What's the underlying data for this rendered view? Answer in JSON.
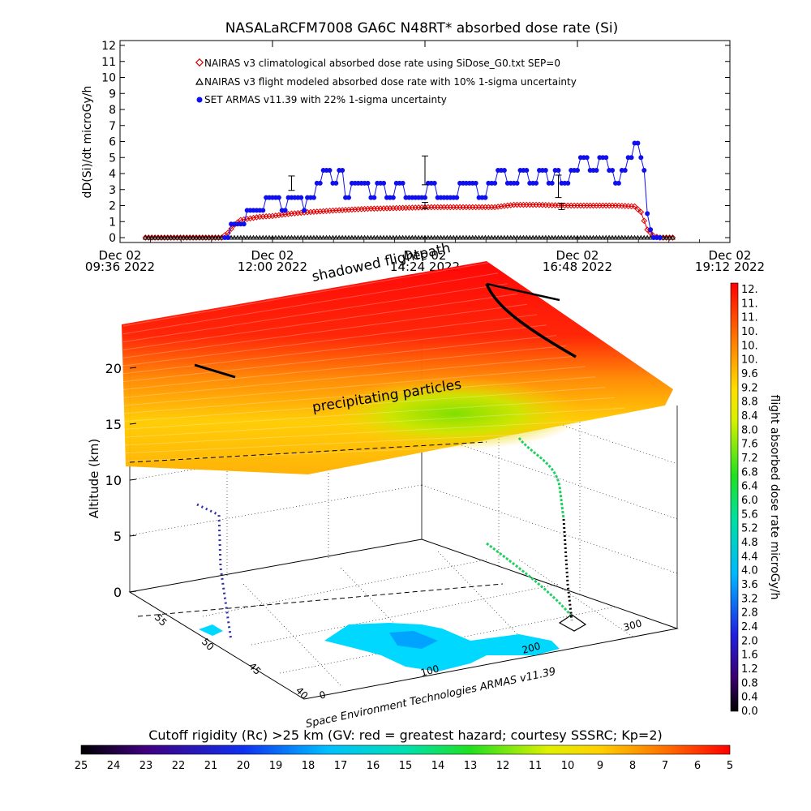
{
  "title": "NASALaRCFM7008   GA6C N48RT* absorbed dose rate (Si)",
  "colors": {
    "nairas_clim": "#e00000",
    "nairas_flight": "#000000",
    "armas": "#1010ee"
  },
  "chart_data": [
    {
      "type": "line",
      "title": "NASALaRCFM7008   GA6C N48RT* absorbed dose rate (Si)",
      "ylabel": "dD(Si)/dt microGy/h",
      "xlabel": "",
      "ylim": [
        0,
        12
      ],
      "yticks": [
        "0",
        "1",
        "2",
        "3",
        "4",
        "5",
        "6",
        "7",
        "8",
        "9",
        "10",
        "11",
        "12"
      ],
      "xticks": [
        {
          "line1": "Dec 02",
          "line2": "09:36 2022",
          "t": 9.6
        },
        {
          "line1": "Dec 02",
          "line2": "12:00 2022",
          "t": 12.0
        },
        {
          "line1": "Dec 02",
          "line2": "14:24 2022",
          "t": 14.4
        },
        {
          "line1": "Dec 02",
          "line2": "16:48 2022",
          "t": 16.8
        },
        {
          "line1": "Dec 02",
          "line2": "19:12 2022",
          "t": 19.2
        }
      ],
      "x_unit": "hours UTC, Dec 02 2022",
      "legend": [
        "NAIRAS v3 climatological absorbed dose rate using SiDose_G0.txt SEP=0",
        "NAIRAS v3 flight modeled absorbed dose rate with 10% 1-sigma uncertainty",
        "SET ARMAS v11.39 with 22% 1-sigma uncertainty"
      ],
      "legend_placement": "top-left",
      "series": [
        {
          "name": "NAIRAS v3 climatological absorbed dose rate using SiDose_G0.txt SEP=0",
          "marker": "diamond",
          "points": [
            [
              10.0,
              0.0
            ],
            [
              10.5,
              0.0
            ],
            [
              11.0,
              0.0
            ],
            [
              11.2,
              0.0
            ],
            [
              11.3,
              0.3
            ],
            [
              11.4,
              0.8
            ],
            [
              11.5,
              1.1
            ],
            [
              11.8,
              1.3
            ],
            [
              12.0,
              1.35
            ],
            [
              12.3,
              1.5
            ],
            [
              12.6,
              1.6
            ],
            [
              13.0,
              1.7
            ],
            [
              13.5,
              1.8
            ],
            [
              14.0,
              1.85
            ],
            [
              14.5,
              1.9
            ],
            [
              15.0,
              1.9
            ],
            [
              15.5,
              1.9
            ],
            [
              15.8,
              2.05
            ],
            [
              16.2,
              2.05
            ],
            [
              16.6,
              2.0
            ],
            [
              17.0,
              2.0
            ],
            [
              17.4,
              2.0
            ],
            [
              17.7,
              1.95
            ],
            [
              17.8,
              1.6
            ],
            [
              17.9,
              0.5
            ],
            [
              18.0,
              0.1
            ],
            [
              18.1,
              0.0
            ],
            [
              18.3,
              0.0
            ]
          ]
        },
        {
          "name": "NAIRAS v3 flight modeled absorbed dose rate with 10% 1-sigma uncertainty",
          "marker": "triangle",
          "points": [
            [
              10.0,
              0.0
            ],
            [
              11.0,
              0.0
            ],
            [
              12.0,
              0.0
            ],
            [
              13.0,
              0.0
            ],
            [
              14.0,
              0.0
            ],
            [
              15.0,
              0.0
            ],
            [
              16.0,
              0.0
            ],
            [
              17.0,
              0.0
            ],
            [
              18.0,
              0.0
            ],
            [
              18.3,
              0.0
            ]
          ],
          "error_bars": [
            {
              "t": 12.3,
              "y": 3.4,
              "err": 0.45
            },
            {
              "t": 14.4,
              "y": 2.0,
              "err": 0.2
            },
            {
              "t": 14.4,
              "y": 4.2,
              "err": 0.9
            },
            {
              "t": 16.5,
              "y": 3.2,
              "err": 0.7
            },
            {
              "t": 16.55,
              "y": 1.95,
              "err": 0.2
            }
          ]
        },
        {
          "name": "SET ARMAS v11.39 with 22% 1-sigma uncertainty",
          "marker": "circle",
          "points": [
            [
              11.25,
              0.0
            ],
            [
              11.4,
              0.85
            ],
            [
              11.55,
              0.85
            ],
            [
              11.6,
              1.7
            ],
            [
              11.85,
              1.7
            ],
            [
              11.9,
              2.5
            ],
            [
              12.1,
              2.5
            ],
            [
              12.2,
              1.7
            ],
            [
              12.3,
              2.5
            ],
            [
              12.45,
              2.5
            ],
            [
              12.5,
              1.7
            ],
            [
              12.6,
              2.5
            ],
            [
              12.75,
              3.4
            ],
            [
              12.85,
              4.2
            ],
            [
              13.0,
              3.4
            ],
            [
              13.1,
              4.2
            ],
            [
              13.2,
              2.5
            ],
            [
              13.3,
              3.4
            ],
            [
              13.5,
              3.4
            ],
            [
              13.6,
              2.5
            ],
            [
              13.7,
              3.4
            ],
            [
              13.9,
              2.5
            ],
            [
              14.0,
              3.4
            ],
            [
              14.2,
              2.5
            ],
            [
              14.35,
              2.5
            ],
            [
              14.5,
              3.4
            ],
            [
              14.7,
              2.5
            ],
            [
              14.9,
              2.5
            ],
            [
              15.0,
              3.4
            ],
            [
              15.2,
              3.4
            ],
            [
              15.3,
              2.5
            ],
            [
              15.45,
              3.4
            ],
            [
              15.6,
              4.2
            ],
            [
              15.8,
              3.4
            ],
            [
              15.95,
              4.2
            ],
            [
              16.1,
              3.4
            ],
            [
              16.25,
              4.2
            ],
            [
              16.4,
              3.4
            ],
            [
              16.5,
              4.2
            ],
            [
              16.6,
              3.4
            ],
            [
              16.75,
              4.2
            ],
            [
              16.9,
              5.0
            ],
            [
              17.05,
              4.2
            ],
            [
              17.2,
              5.0
            ],
            [
              17.35,
              4.2
            ],
            [
              17.45,
              3.4
            ],
            [
              17.55,
              4.2
            ],
            [
              17.65,
              5.0
            ],
            [
              17.75,
              5.9
            ],
            [
              17.8,
              5.0
            ],
            [
              17.85,
              4.2
            ],
            [
              17.9,
              1.5
            ],
            [
              17.95,
              0.5
            ],
            [
              18.0,
              0.0
            ],
            [
              18.1,
              0.0
            ]
          ]
        }
      ]
    },
    {
      "type": "scatter",
      "title": "",
      "zlabel": "Altitude (km)",
      "zlim": [
        0,
        20
      ],
      "zticks": [
        "0",
        "5",
        "10",
        "15",
        "20"
      ],
      "lat_ticks": [
        "55",
        "50",
        "45",
        "40"
      ],
      "lon_ticks": [
        "0",
        "100",
        "200",
        "300"
      ],
      "annotations": [
        "shadowed flightpath",
        "precipitating particles"
      ],
      "credit": "Space Environment Technologies ARMAS v11.39",
      "colorbar": {
        "label": "flight absorbed dose rate microGy/h",
        "range": [
          0.0,
          12.0
        ],
        "ticks": [
          "12.",
          "11.",
          "11.",
          "10.",
          "10.",
          "10.",
          "9.6",
          "9.2",
          "8.8",
          "8.4",
          "8.0",
          "7.6",
          "7.2",
          "6.8",
          "6.4",
          "6.0",
          "5.6",
          "5.2",
          "4.8",
          "4.4",
          "4.0",
          "3.6",
          "3.2",
          "2.8",
          "2.4",
          "2.0",
          "1.6",
          "1.2",
          "0.8",
          "0.4",
          "0.0"
        ]
      }
    },
    {
      "type": "heatmap",
      "title": "Cutoff rigidity (Rc) >25 km (GV: red = greatest hazard; courtesy SSSRC; Kp=2)",
      "colorbar_ticks": [
        "25",
        "24",
        "23",
        "22",
        "21",
        "20",
        "19",
        "18",
        "17",
        "16",
        "15",
        "14",
        "13",
        "12",
        "11",
        "10",
        "9",
        "8",
        "7",
        "6",
        "5"
      ],
      "range": [
        25,
        5
      ]
    }
  ]
}
